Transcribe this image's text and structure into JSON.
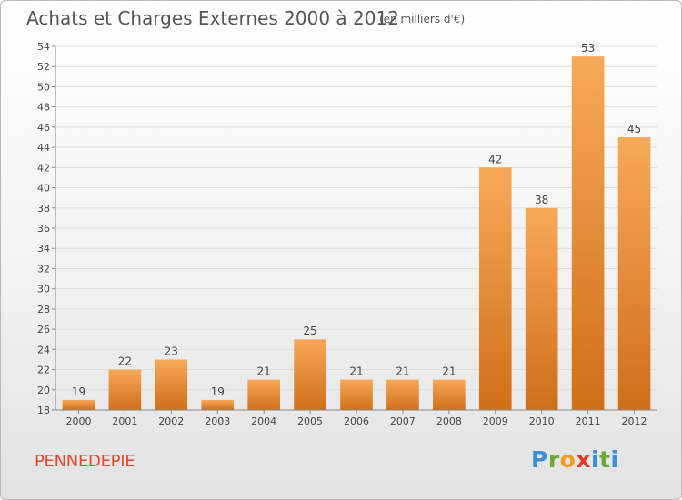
{
  "header": {
    "title": "Achats et Charges Externes 2000 à 2012",
    "subtitle": "(en milliers d'€)"
  },
  "footer": {
    "place": "PENNEDEPIE",
    "logo": [
      "P",
      "r",
      "o",
      "x",
      "i",
      "t",
      "i"
    ]
  },
  "chart_data": {
    "type": "bar",
    "title": "Achats et Charges Externes 2000 à 2012",
    "subtitle": "(en milliers d'€)",
    "categories": [
      "2000",
      "2001",
      "2002",
      "2003",
      "2004",
      "2005",
      "2006",
      "2007",
      "2008",
      "2009",
      "2010",
      "2011",
      "2012"
    ],
    "values": [
      19,
      22,
      23,
      19,
      21,
      25,
      21,
      21,
      21,
      42,
      38,
      53,
      45
    ],
    "data_labels": [
      "19",
      "22",
      "23",
      "19",
      "21",
      "25",
      "21",
      "21",
      "21",
      "42",
      "38",
      "53",
      "45"
    ],
    "ylim": [
      18,
      54
    ],
    "yticks": [
      18,
      20,
      22,
      24,
      26,
      28,
      30,
      32,
      34,
      36,
      38,
      40,
      42,
      44,
      46,
      48,
      50,
      52,
      54
    ],
    "grid": true,
    "bar_color_top": "#f7a95a",
    "bar_color_bottom": "#d06f18",
    "xlabel": "",
    "ylabel": ""
  }
}
